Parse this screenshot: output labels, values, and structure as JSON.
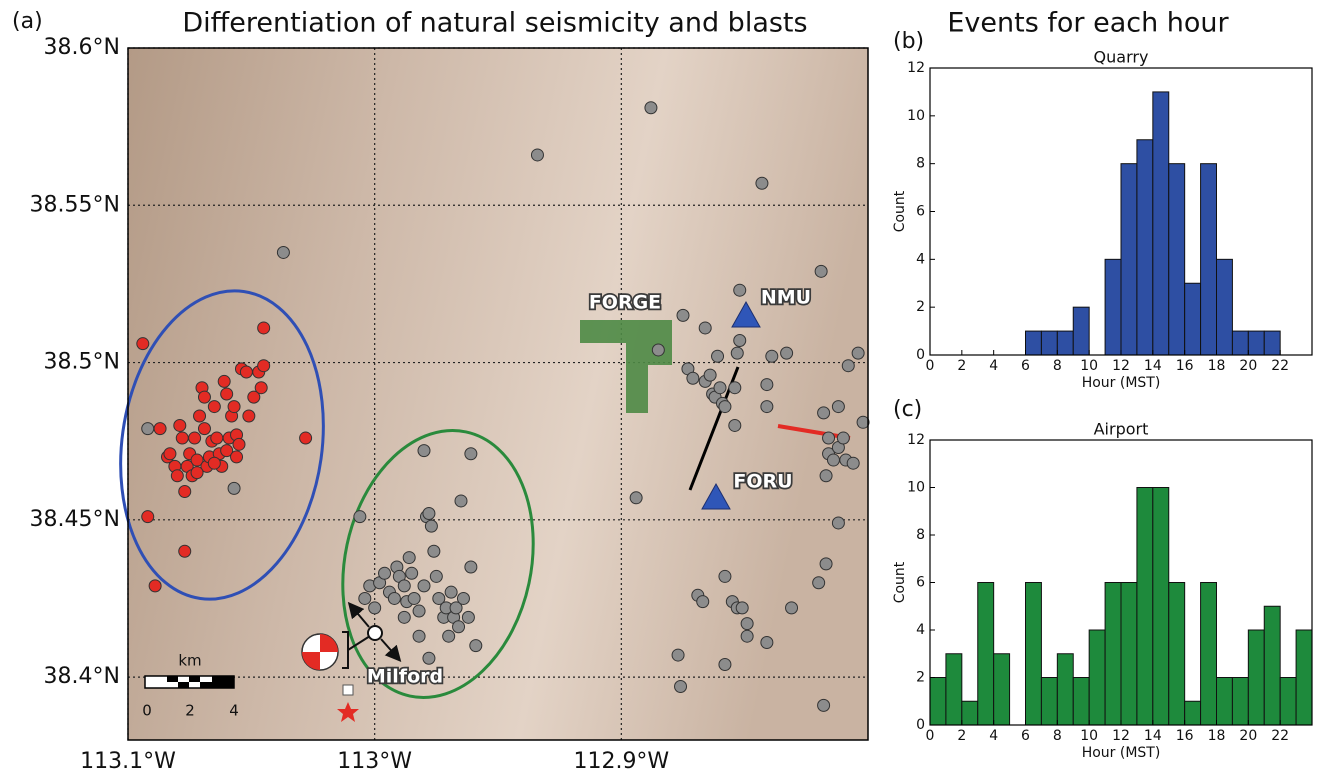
{
  "chart_data": [
    {
      "type": "scatter",
      "panel": "(a)",
      "title": "Differentiation of natural seismicity and blasts",
      "xlim": [
        -113.1,
        -112.8
      ],
      "ylim": [
        38.38,
        38.6
      ],
      "xticks": [
        {
          "value": -113.1,
          "label": "113.1°W"
        },
        {
          "value": -113.0,
          "label": "113°W"
        },
        {
          "value": -112.9,
          "label": "112.9°W"
        }
      ],
      "yticks": [
        {
          "value": 38.4,
          "label": "38.4°N"
        },
        {
          "value": 38.45,
          "label": "38.45°N"
        },
        {
          "value": 38.5,
          "label": "38.5°N"
        },
        {
          "value": 38.55,
          "label": "38.55°N"
        },
        {
          "value": 38.6,
          "label": "38.6°N"
        }
      ],
      "grid": true,
      "series": [
        {
          "color": "#8c8c8c",
          "x": [
            -113.037,
            -113.092,
            -112.934,
            -112.888,
            -112.843,
            -113.057,
            -112.98,
            -112.961,
            -113.006,
            -113.004,
            -113.002,
            -113.0,
            -112.998,
            -112.996,
            -112.994,
            -112.992,
            -112.991,
            -112.99,
            -112.988,
            -112.987,
            -112.986,
            -112.985,
            -112.984,
            -112.982,
            -112.98,
            -112.979,
            -112.978,
            -112.977,
            -112.976,
            -112.975,
            -112.974,
            -112.972,
            -112.971,
            -112.97,
            -112.969,
            -112.968,
            -112.967,
            -112.966,
            -112.965,
            -112.964,
            -112.962,
            -112.961,
            -112.959,
            -112.978,
            -112.982,
            -112.988,
            -112.894,
            -112.875,
            -112.885,
            -112.873,
            -112.871,
            -112.866,
            -112.866,
            -112.864,
            -112.863,
            -112.862,
            -112.861,
            -112.86,
            -112.859,
            -112.858,
            -112.854,
            -112.853,
            -112.852,
            -112.854,
            -112.852,
            -112.841,
            -112.839,
            -112.833,
            -112.841,
            -112.819,
            -112.818,
            -112.816,
            -112.816,
            -112.814,
            -112.817,
            -112.808,
            -112.804,
            -112.812,
            -112.809,
            -112.806,
            -112.812,
            -112.81,
            -112.802,
            -112.82,
            -112.817,
            -112.812,
            -112.858,
            -112.869,
            -112.855,
            -112.853,
            -112.851,
            -112.849,
            -112.841,
            -112.831,
            -112.867,
            -112.877,
            -112.876,
            -112.858,
            -112.849,
            -112.818
          ],
          "values": [
            38.535,
            38.479,
            38.566,
            38.581,
            38.557,
            38.46,
            38.472,
            38.471,
            38.451,
            38.425,
            38.429,
            38.422,
            38.43,
            38.433,
            38.427,
            38.425,
            38.435,
            38.432,
            38.429,
            38.424,
            38.438,
            38.433,
            38.425,
            38.421,
            38.429,
            38.451,
            38.452,
            38.448,
            38.44,
            38.432,
            38.425,
            38.419,
            38.422,
            38.413,
            38.427,
            38.419,
            38.422,
            38.416,
            38.456,
            38.425,
            38.419,
            38.435,
            38.41,
            38.406,
            38.413,
            38.419,
            38.457,
            38.515,
            38.504,
            38.498,
            38.495,
            38.511,
            38.494,
            38.496,
            38.49,
            38.489,
            38.502,
            38.492,
            38.487,
            38.486,
            38.48,
            38.503,
            38.507,
            38.492,
            38.523,
            38.493,
            38.502,
            38.503,
            38.486,
            38.529,
            38.484,
            38.476,
            38.471,
            38.469,
            38.464,
            38.499,
            38.503,
            38.473,
            38.469,
            38.468,
            38.486,
            38.476,
            38.481,
            38.43,
            38.436,
            38.449,
            38.432,
            38.426,
            38.424,
            38.422,
            38.422,
            38.417,
            38.411,
            38.422,
            38.424,
            38.407,
            38.397,
            38.404,
            38.413,
            38.391
          ]
        },
        {
          "color": "#e32b24",
          "x": [
            -113.094,
            -113.092,
            -113.089,
            -113.087,
            -113.084,
            -113.083,
            -113.081,
            -113.08,
            -113.079,
            -113.078,
            -113.077,
            -113.076,
            -113.075,
            -113.074,
            -113.073,
            -113.072,
            -113.071,
            -113.07,
            -113.069,
            -113.069,
            -113.068,
            -113.067,
            -113.066,
            -113.065,
            -113.064,
            -113.063,
            -113.062,
            -113.061,
            -113.06,
            -113.059,
            -113.058,
            -113.057,
            -113.056,
            -113.055,
            -113.054,
            -113.052,
            -113.051,
            -113.049,
            -113.047,
            -113.046,
            -113.045,
            -113.045,
            -113.028,
            -113.077,
            -113.072,
            -113.065,
            -113.06,
            -113.056
          ],
          "values": [
            38.506,
            38.451,
            38.429,
            38.479,
            38.47,
            38.471,
            38.467,
            38.464,
            38.48,
            38.476,
            38.459,
            38.467,
            38.471,
            38.464,
            38.476,
            38.469,
            38.483,
            38.492,
            38.489,
            38.479,
            38.467,
            38.47,
            38.475,
            38.486,
            38.476,
            38.471,
            38.467,
            38.494,
            38.49,
            38.476,
            38.483,
            38.486,
            38.477,
            38.474,
            38.498,
            38.497,
            38.483,
            38.489,
            38.497,
            38.492,
            38.511,
            38.499,
            38.476,
            38.44,
            38.465,
            38.468,
            38.472,
            38.47
          ]
        }
      ],
      "annotations": [
        "FORGE",
        "NMU",
        "FORU",
        "Milford"
      ],
      "scale_bar": {
        "unit": "km",
        "ticks": [
          0,
          2,
          4
        ]
      }
    },
    {
      "type": "histogram",
      "panel": "(b)",
      "heading": "Events for each hour",
      "title": "Quarry",
      "xlabel": "Hour (MST)",
      "ylabel": "Count",
      "color": "#2e4fa3",
      "bins": [
        0,
        1,
        2,
        3,
        4,
        5,
        6,
        7,
        8,
        9,
        10,
        11,
        12,
        13,
        14,
        15,
        16,
        17,
        18,
        19,
        20,
        21,
        22,
        23,
        24
      ],
      "counts": [
        0,
        0,
        0,
        0,
        0,
        0,
        1,
        1,
        1,
        2,
        0,
        4,
        8,
        9,
        11,
        8,
        3,
        8,
        4,
        1,
        1,
        1,
        0,
        0
      ],
      "xlim": [
        0,
        24
      ],
      "ylim": [
        0,
        12
      ],
      "xticks": [
        0,
        2,
        4,
        6,
        8,
        10,
        12,
        14,
        16,
        18,
        20,
        22
      ],
      "yticks": [
        0,
        2,
        4,
        6,
        8,
        10,
        12
      ]
    },
    {
      "type": "histogram",
      "panel": "(c)",
      "title": "Airport",
      "xlabel": "Hour (MST)",
      "ylabel": "Count",
      "color": "#1e8a3c",
      "bins": [
        0,
        1,
        2,
        3,
        4,
        5,
        6,
        7,
        8,
        9,
        10,
        11,
        12,
        13,
        14,
        15,
        16,
        17,
        18,
        19,
        20,
        21,
        22,
        23,
        24
      ],
      "counts": [
        2,
        3,
        1,
        6,
        3,
        0,
        6,
        2,
        3,
        2,
        4,
        6,
        6,
        10,
        10,
        6,
        1,
        6,
        2,
        2,
        4,
        5,
        2,
        4
      ],
      "xlim": [
        0,
        24
      ],
      "ylim": [
        0,
        12
      ],
      "xticks": [
        0,
        2,
        4,
        6,
        8,
        10,
        12,
        14,
        16,
        18,
        20,
        22
      ],
      "yticks": [
        0,
        2,
        4,
        6,
        8,
        10,
        12
      ]
    }
  ]
}
